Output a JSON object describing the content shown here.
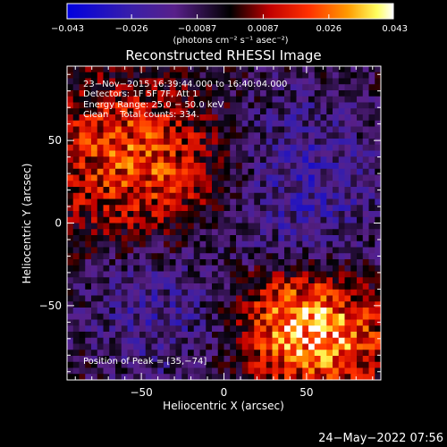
{
  "chart_data": {
    "type": "heatmap",
    "title": "Reconstructed RHESSI Image",
    "xlabel": "Heliocentric X (arcsec)",
    "ylabel": "Heliocentric Y (arcsec)",
    "xlim": [
      -95,
      95
    ],
    "ylim": [
      -95,
      95
    ],
    "x_ticks": [
      -50,
      0,
      50
    ],
    "x_tick_labels": [
      "−50",
      "0",
      "50"
    ],
    "y_ticks": [
      -50,
      0,
      50
    ],
    "y_tick_labels": [
      "−50",
      "0",
      "50"
    ],
    "colorbar": {
      "range": [
        -0.043,
        0.043
      ],
      "tick_values": [
        -0.043,
        -0.026,
        -0.0087,
        0.0087,
        0.026,
        0.043
      ],
      "tick_labels": [
        "−0.043",
        "−0.026",
        "−0.0087",
        "0.0087",
        "0.026",
        "0.043"
      ],
      "units": "(photons cm⁻² s⁻¹ asec⁻²)",
      "colors": [
        "#0000e0",
        "#3a1fa8",
        "#58208a",
        "#000000",
        "#c00000",
        "#ff3000",
        "#ff9a00",
        "#ffff60",
        "#ffffff"
      ]
    },
    "annotations": [
      "23−Nov−2015 16:39:44.000 to 16:40:04.000",
      "Detectors: 1F 5F 7F, Att 1",
      "Energy Range: 25.0 − 50.0 keV",
      "Clean    Total counts: 334."
    ],
    "peak_label": "Position of Peak = [35,−74]",
    "peak_position": [
      35,
      -74
    ],
    "sources": [
      {
        "x": 55,
        "y": -70,
        "amplitude": 0.034,
        "sx": 30,
        "sy": 22
      },
      {
        "x": 40,
        "y": -45,
        "amplitude": 0.015,
        "sx": 25,
        "sy": 16
      },
      {
        "x": -45,
        "y": 30,
        "amplitude": 0.022,
        "sx": 42,
        "sy": 30
      },
      {
        "x": -70,
        "y": 58,
        "amplitude": 0.008,
        "sx": 25,
        "sy": 20
      },
      {
        "x": 45,
        "y": 25,
        "amplitude": -0.02,
        "sx": 38,
        "sy": 45
      },
      {
        "x": -40,
        "y": -55,
        "amplitude": -0.016,
        "sx": 35,
        "sy": 35
      }
    ],
    "background_level": -0.003
  },
  "footer": {
    "date": "24−May−2022 07:56"
  }
}
